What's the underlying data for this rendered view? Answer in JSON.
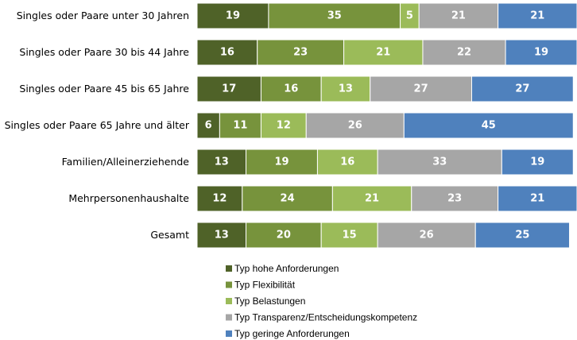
{
  "chart_data": {
    "type": "stacked-bar",
    "categories": [
      "Singles oder Paare unter 30 Jahren",
      "Singles oder Paare 30 bis 44 Jahre",
      "Singles oder Paare 45 bis 65 Jahre",
      "Singles oder Paare 65 Jahre und älter",
      "Familien/Alleinerziehende",
      "Mehrpersonenhaushalte",
      "Gesamt"
    ],
    "series": [
      {
        "name": "Typ hohe Anforderungen",
        "color": "#4f6228",
        "values": [
          19,
          16,
          17,
          6,
          13,
          12,
          13
        ]
      },
      {
        "name": "Typ Flexibilität",
        "color": "#77933c",
        "values": [
          35,
          23,
          16,
          11,
          19,
          24,
          20
        ]
      },
      {
        "name": "Typ Belastungen",
        "color": "#9bbb59",
        "values": [
          5,
          21,
          13,
          12,
          16,
          21,
          15
        ]
      },
      {
        "name": "Typ Transparenz/Entscheidungskompetenz",
        "color": "#a6a6a6",
        "values": [
          21,
          22,
          27,
          26,
          33,
          23,
          26
        ]
      },
      {
        "name": "Typ geringe Anforderungen",
        "color": "#4f81bd",
        "values": [
          21,
          19,
          27,
          45,
          19,
          21,
          25
        ]
      }
    ]
  }
}
